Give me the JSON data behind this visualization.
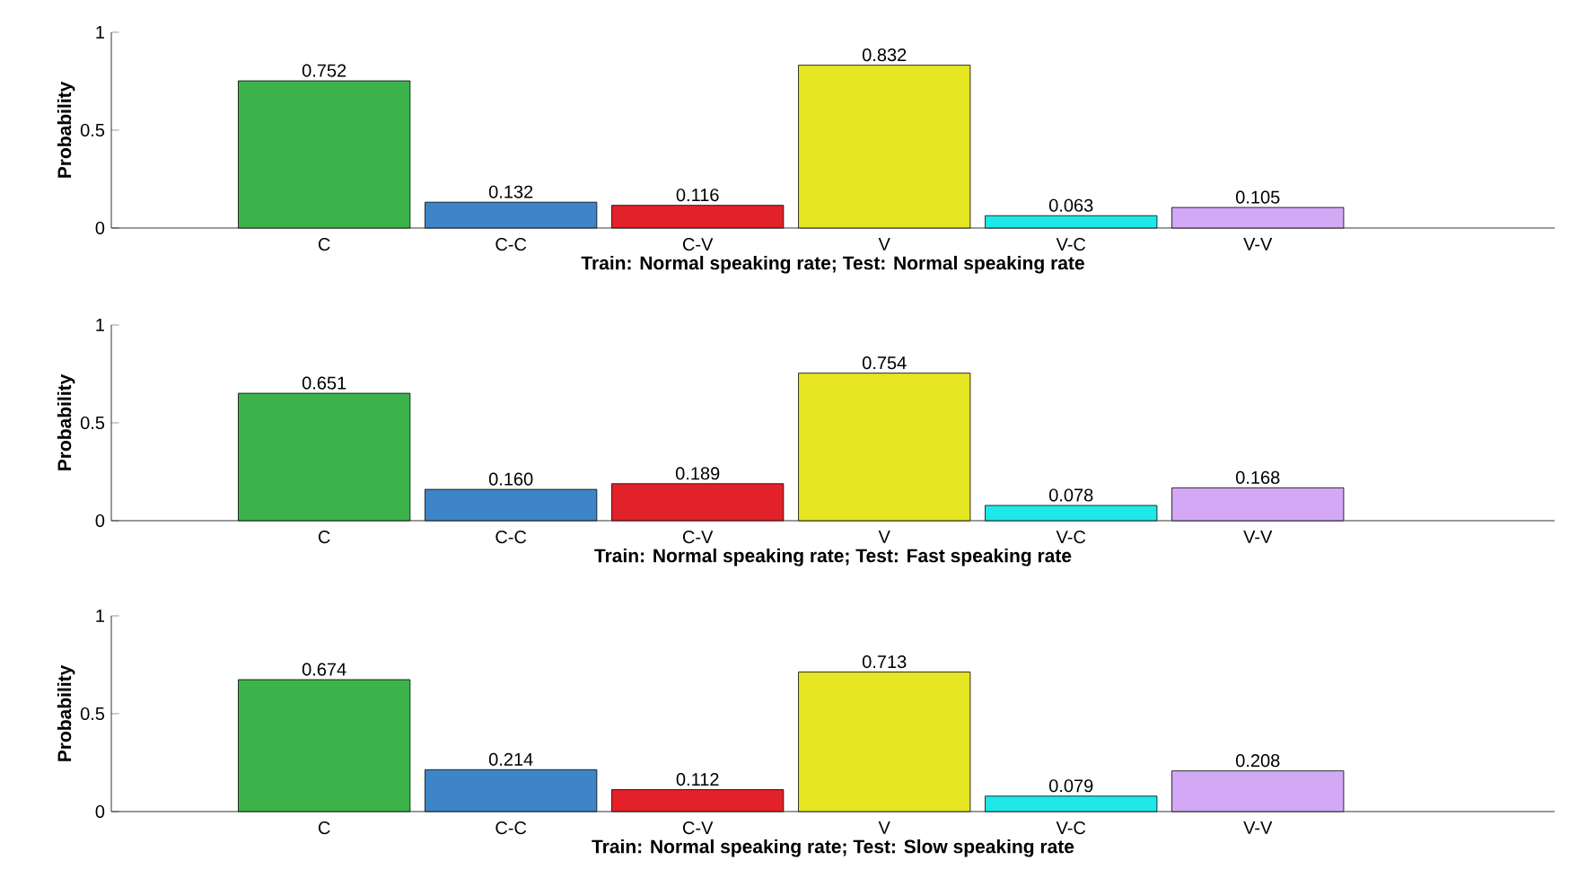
{
  "chart_data": [
    {
      "type": "bar",
      "xlabel": "Train: Normal speaking rate; Test: Normal speaking rate",
      "ylabel": "Probability",
      "categories": [
        "C",
        "C-C",
        "C-V",
        "V",
        "V-C",
        "V-V"
      ],
      "values": [
        0.752,
        0.132,
        0.116,
        0.832,
        0.063,
        0.105
      ],
      "value_labels": [
        "0.752",
        "0.132",
        "0.116",
        "0.832",
        "0.063",
        "0.105"
      ],
      "colors": [
        "#3bb34a",
        "#3d85c6",
        "#e3212b",
        "#e5e522",
        "#1ee8e8",
        "#d3a9f5"
      ],
      "ylim": [
        0,
        1
      ],
      "yticks": [
        0,
        0.5,
        1
      ]
    },
    {
      "type": "bar",
      "xlabel": "Train: Normal speaking rate; Test: Fast speaking rate",
      "ylabel": "Probability",
      "categories": [
        "C",
        "C-C",
        "C-V",
        "V",
        "V-C",
        "V-V"
      ],
      "values": [
        0.651,
        0.16,
        0.189,
        0.754,
        0.078,
        0.168
      ],
      "value_labels": [
        "0.651",
        "0.160",
        "0.189",
        "0.754",
        "0.078",
        "0.168"
      ],
      "colors": [
        "#3bb34a",
        "#3d85c6",
        "#e3212b",
        "#e5e522",
        "#1ee8e8",
        "#d3a9f5"
      ],
      "ylim": [
        0,
        1
      ],
      "yticks": [
        0,
        0.5,
        1
      ]
    },
    {
      "type": "bar",
      "xlabel": "Train: Normal speaking rate; Test: Slow speaking rate",
      "ylabel": "Probability",
      "categories": [
        "C",
        "C-C",
        "C-V",
        "V",
        "V-C",
        "V-V"
      ],
      "values": [
        0.674,
        0.214,
        0.112,
        0.713,
        0.079,
        0.208
      ],
      "value_labels": [
        "0.674",
        "0.214",
        "0.112",
        "0.713",
        "0.079",
        "0.208"
      ],
      "colors": [
        "#3bb34a",
        "#3d85c6",
        "#e3212b",
        "#e5e522",
        "#1ee8e8",
        "#d3a9f5"
      ],
      "ylim": [
        0,
        1
      ],
      "yticks": [
        0,
        0.5,
        1
      ]
    }
  ]
}
